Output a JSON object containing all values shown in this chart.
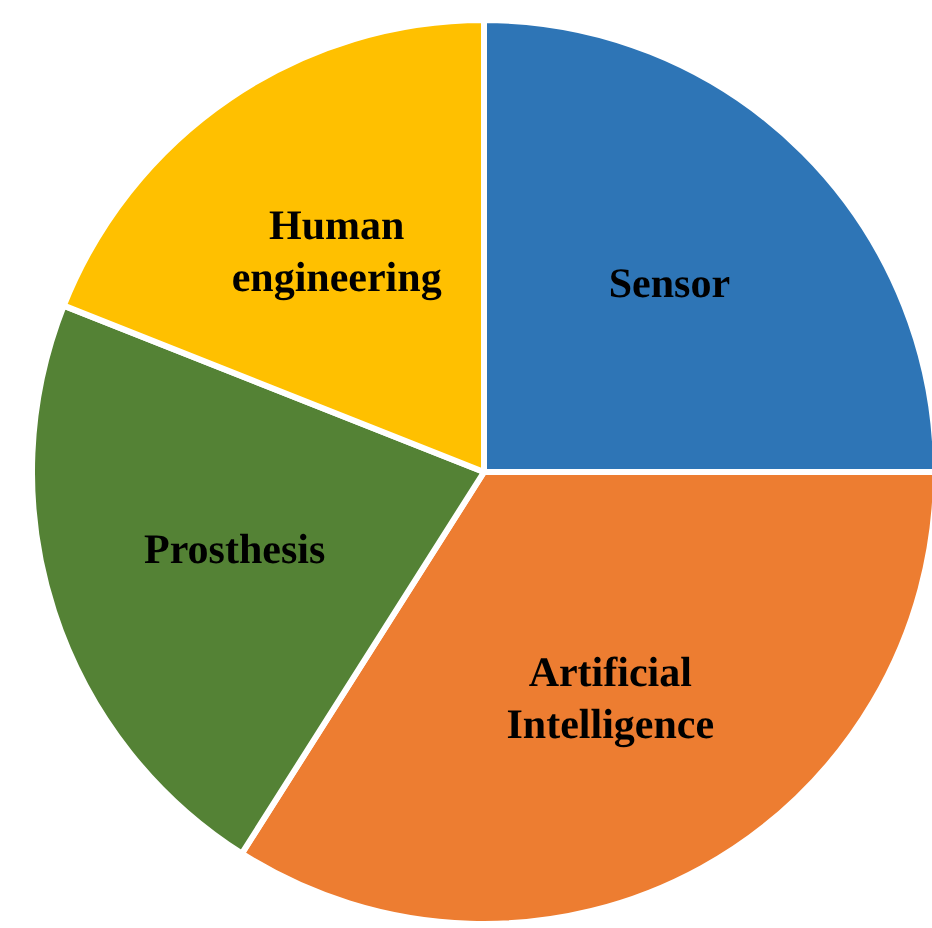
{
  "chart_data": {
    "type": "pie",
    "categories": [
      "Sensor",
      "Artificial Intelligence",
      "Prosthesis",
      "Human engineering"
    ],
    "values": [
      25,
      34,
      22,
      19
    ],
    "colors": [
      "#2e75b6",
      "#ed7d31",
      "#548235",
      "#ffc000"
    ]
  }
}
